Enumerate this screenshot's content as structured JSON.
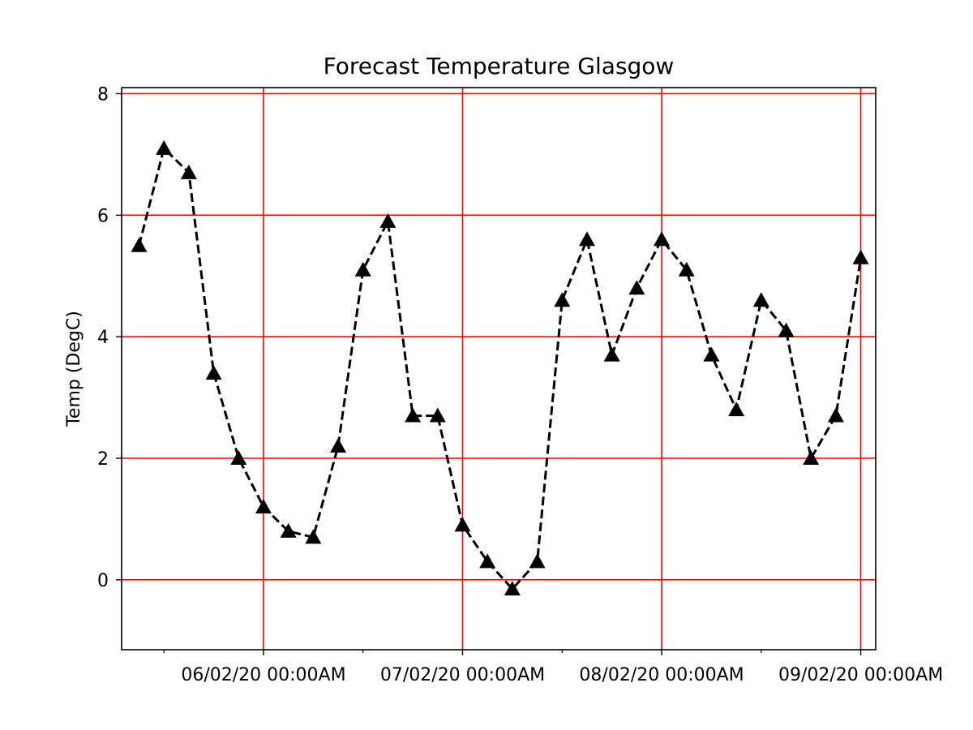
{
  "chart_data": {
    "type": "line",
    "title": "Forecast Temperature Glasgow",
    "xlabel": "",
    "ylabel": "Temp (DegC)",
    "ylim": [
      -1.15,
      8.1
    ],
    "x_unit": "hours",
    "x_range": [
      -2.1,
      88.8
    ],
    "x": [
      0,
      3,
      6,
      9,
      12,
      15,
      18,
      21,
      24,
      27,
      30,
      33,
      36,
      39,
      42,
      45,
      48,
      51,
      54,
      57,
      60,
      63,
      66,
      69,
      72,
      75,
      78,
      81,
      84,
      87
    ],
    "series": [
      {
        "values": [
          5.5,
          7.1,
          6.7,
          3.4,
          2.0,
          1.2,
          0.8,
          0.7,
          2.2,
          5.1,
          5.9,
          2.7,
          2.7,
          0.9,
          0.3,
          -0.15,
          0.3,
          4.6,
          5.6,
          3.7,
          4.8,
          5.6,
          5.1,
          3.7,
          2.8,
          4.6,
          4.1,
          2.0,
          2.7,
          5.3
        ],
        "line_style": "dashed",
        "marker": "triangle",
        "color": "#000000"
      }
    ],
    "y_ticks": [
      0,
      2,
      4,
      6,
      8
    ],
    "y_tick_labels": [
      "0",
      "2",
      "4",
      "6",
      "8"
    ],
    "x_major_ticks": [
      15,
      39,
      63,
      87
    ],
    "x_major_tick_labels": [
      "06/02/20 00:00AM",
      "07/02/20 00:00AM",
      "08/02/20 00:00AM",
      "09/02/20 00:00AM"
    ],
    "x_minor_ticks": [
      3,
      27,
      51,
      75
    ],
    "grid": true,
    "grid_color": "#ff0000"
  }
}
